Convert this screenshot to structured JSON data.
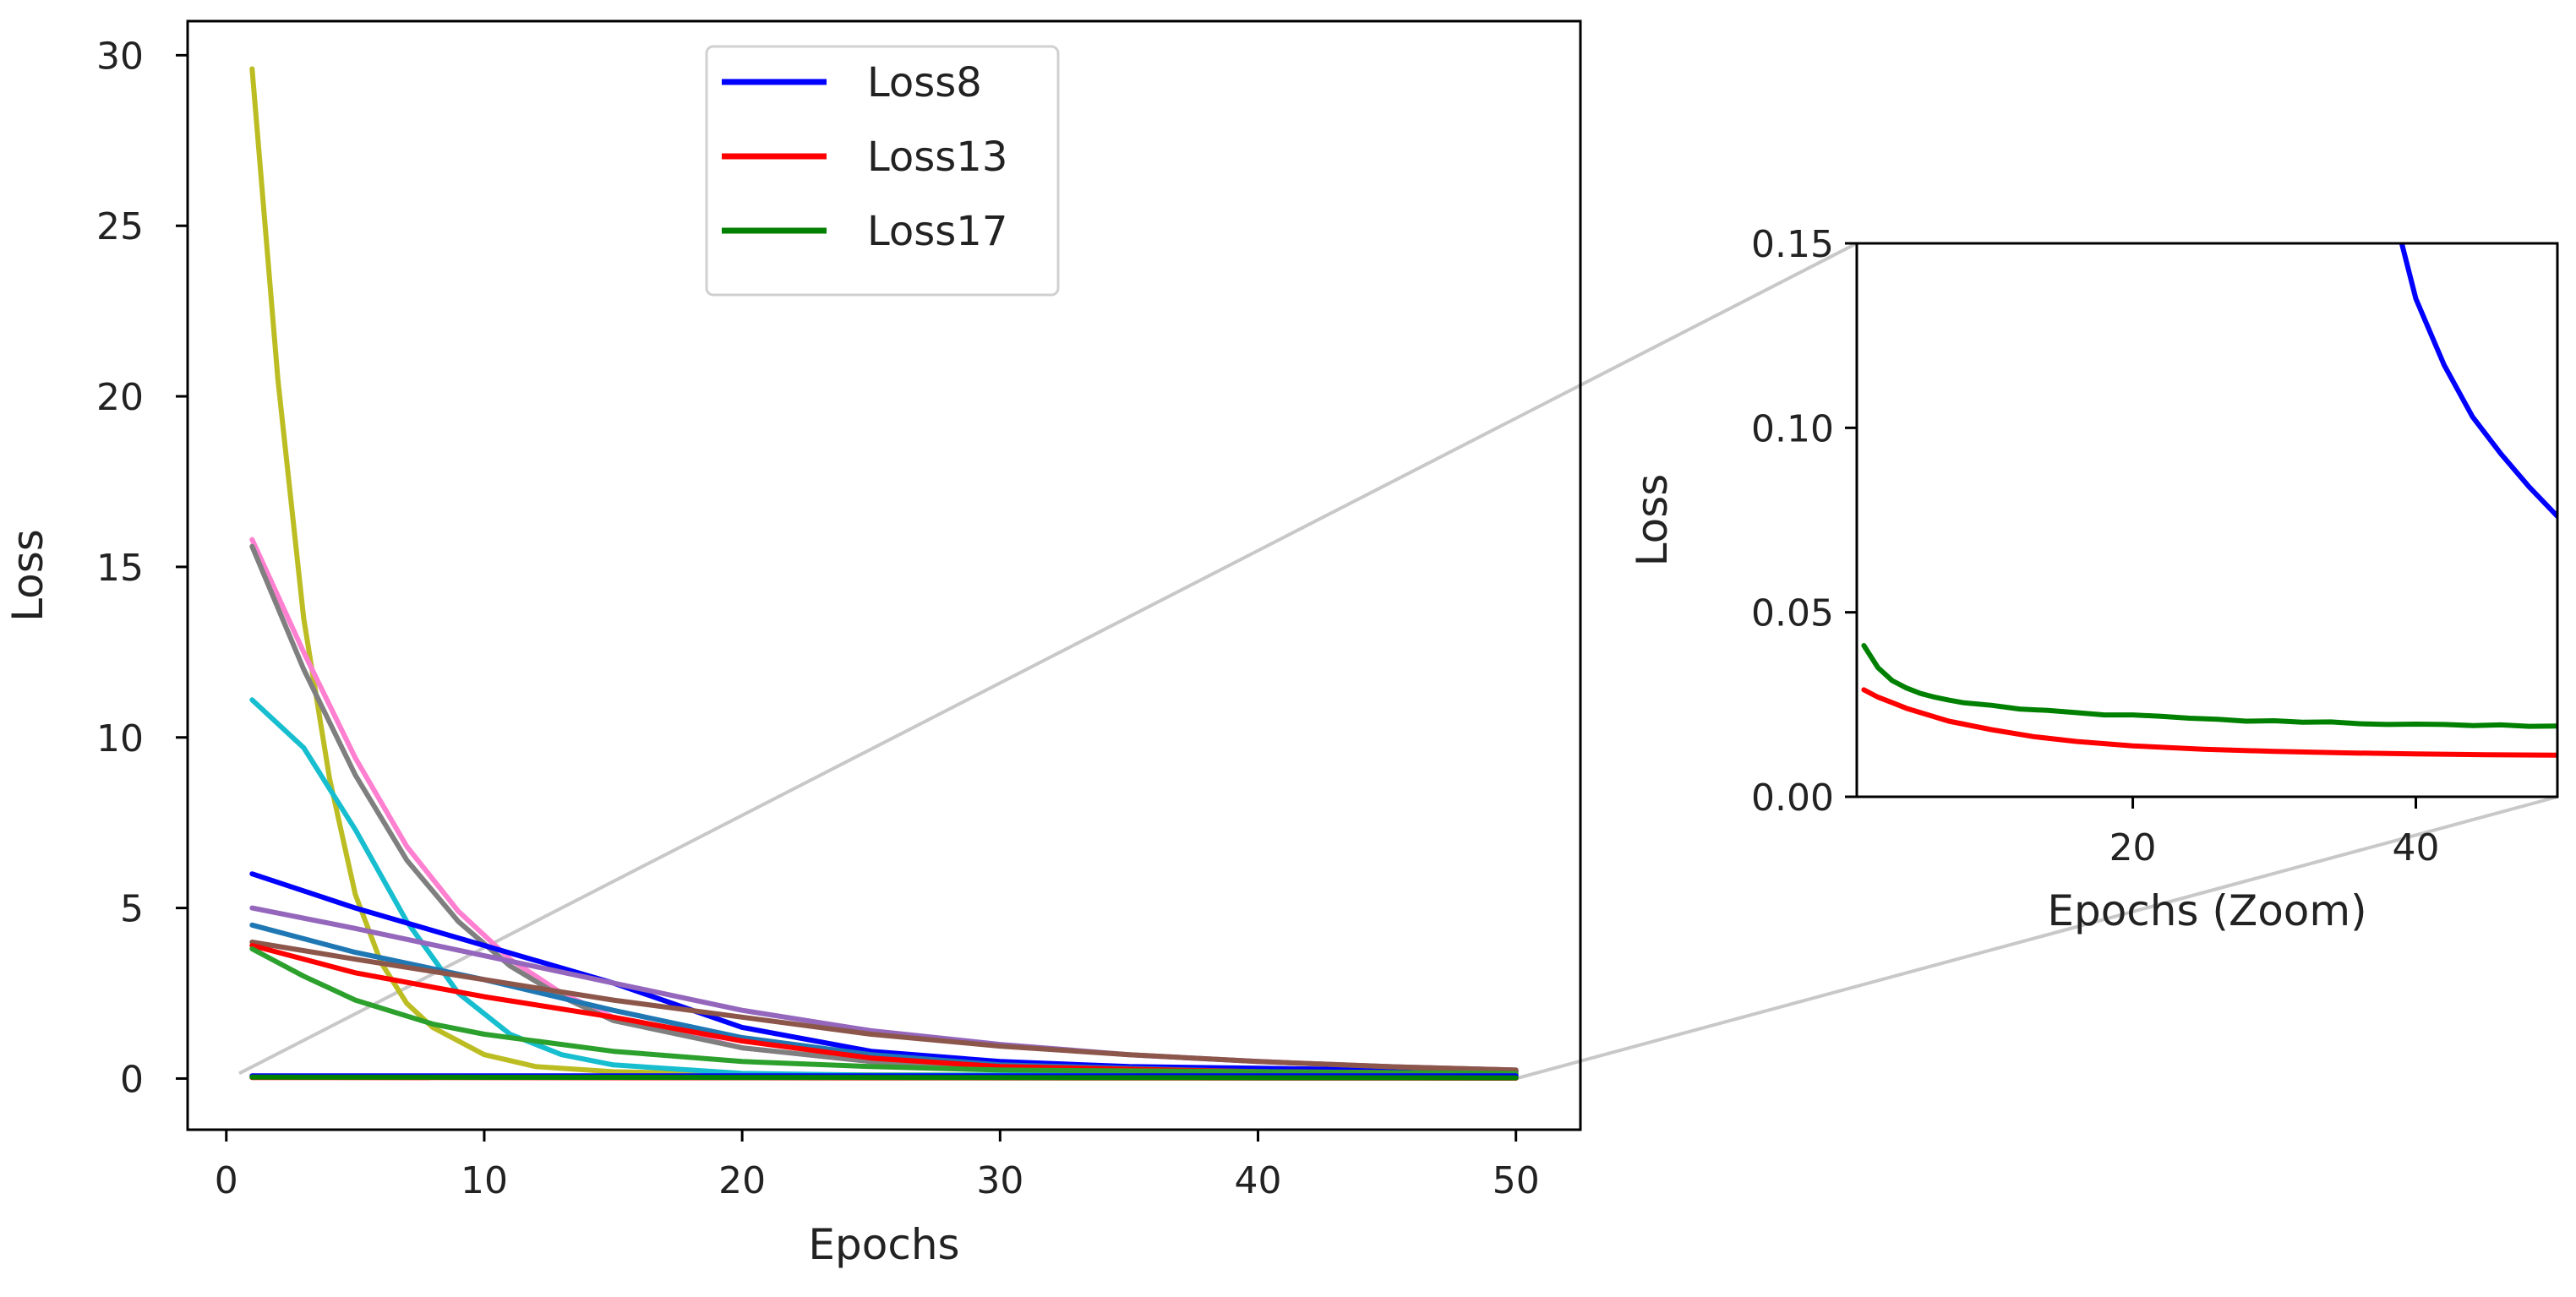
{
  "chart_data": [
    {
      "id": "main",
      "type": "line",
      "title": "",
      "xlabel": "Epochs",
      "ylabel": "Loss",
      "xlim": [
        -1.5,
        52.5
      ],
      "ylim": [
        -1.5,
        31
      ],
      "xticks": [
        0,
        10,
        20,
        30,
        40,
        50
      ],
      "yticks": [
        0,
        5,
        10,
        15,
        20,
        25,
        30
      ],
      "xtick_labels": [
        "0",
        "10",
        "20",
        "30",
        "40",
        "50"
      ],
      "ytick_labels": [
        "0",
        "5",
        "10",
        "15",
        "20",
        "25",
        "30"
      ],
      "grid": false,
      "legend": {
        "position": "top-center",
        "entries": [
          {
            "label": "Loss8",
            "color": "#0000ff"
          },
          {
            "label": "Loss13",
            "color": "#ff0000"
          },
          {
            "label": "Loss17",
            "color": "#008000"
          }
        ]
      },
      "series": [
        {
          "name": "yellow curve",
          "color": "#bcbd22",
          "x": [
            1,
            2,
            3,
            4,
            5,
            6,
            7,
            8,
            10,
            12,
            15,
            20,
            30,
            50
          ],
          "values": [
            29.6,
            20.5,
            13.5,
            8.8,
            5.4,
            3.4,
            2.2,
            1.5,
            0.7,
            0.35,
            0.2,
            0.12,
            0.1,
            0.1
          ]
        },
        {
          "name": "pink curve",
          "color": "#ff7fd0",
          "x": [
            1,
            3,
            5,
            7,
            9,
            11,
            13,
            15,
            20,
            25,
            30,
            40,
            50
          ],
          "values": [
            15.8,
            12.5,
            9.4,
            6.8,
            4.9,
            3.5,
            2.5,
            1.8,
            0.9,
            0.5,
            0.3,
            0.15,
            0.1
          ]
        },
        {
          "name": "gray curve",
          "color": "#7f7f7f",
          "x": [
            1,
            3,
            5,
            7,
            9,
            11,
            13,
            15,
            20,
            25,
            30,
            40,
            50
          ],
          "values": [
            15.6,
            12.0,
            8.9,
            6.4,
            4.6,
            3.3,
            2.4,
            1.7,
            0.9,
            0.5,
            0.3,
            0.15,
            0.1
          ]
        },
        {
          "name": "cyan curve",
          "color": "#17becf",
          "x": [
            1,
            3,
            5,
            7,
            9,
            11,
            13,
            15,
            20,
            25,
            30,
            50
          ],
          "values": [
            11.1,
            9.7,
            7.3,
            4.6,
            2.5,
            1.3,
            0.7,
            0.4,
            0.15,
            0.1,
            0.1,
            0.1
          ]
        },
        {
          "name": "blue curve",
          "color": "#0000ff",
          "x": [
            1,
            5,
            10,
            15,
            20,
            25,
            30,
            35,
            40,
            45,
            50
          ],
          "values": [
            6.0,
            5.0,
            3.9,
            2.8,
            1.5,
            0.8,
            0.5,
            0.35,
            0.3,
            0.25,
            0.2
          ]
        },
        {
          "name": "purple curve",
          "color": "#9467bd",
          "x": [
            1,
            5,
            10,
            15,
            20,
            25,
            30,
            35,
            40,
            45,
            50
          ],
          "values": [
            5.0,
            4.4,
            3.6,
            2.8,
            2.0,
            1.4,
            1.0,
            0.7,
            0.5,
            0.35,
            0.25
          ]
        },
        {
          "name": "steel blue curve",
          "color": "#1f77b4",
          "x": [
            1,
            5,
            10,
            15,
            20,
            25,
            30,
            40,
            50
          ],
          "values": [
            4.5,
            3.7,
            2.9,
            2.0,
            1.2,
            0.7,
            0.4,
            0.2,
            0.15
          ]
        },
        {
          "name": "brown curve",
          "color": "#8c564b",
          "x": [
            1,
            5,
            10,
            15,
            20,
            25,
            30,
            35,
            40,
            45,
            50
          ],
          "values": [
            4.0,
            3.5,
            2.9,
            2.3,
            1.8,
            1.3,
            0.95,
            0.7,
            0.5,
            0.35,
            0.25
          ]
        },
        {
          "name": "red curve",
          "color": "#ff0000",
          "x": [
            1,
            5,
            10,
            15,
            20,
            25,
            30,
            40,
            50
          ],
          "values": [
            3.9,
            3.1,
            2.4,
            1.8,
            1.1,
            0.6,
            0.35,
            0.2,
            0.15
          ]
        },
        {
          "name": "green curve",
          "color": "#2ca02c",
          "x": [
            1,
            3,
            5,
            8,
            10,
            15,
            20,
            25,
            30,
            40,
            50
          ],
          "values": [
            3.8,
            3.0,
            2.3,
            1.6,
            1.3,
            0.8,
            0.5,
            0.35,
            0.25,
            0.2,
            0.15
          ]
        },
        {
          "name": "Loss8",
          "color": "#0000ff",
          "x": [
            1,
            50
          ],
          "values": [
            0.08,
            0.08
          ]
        },
        {
          "name": "Loss13",
          "color": "#ff0000",
          "x": [
            1,
            50
          ],
          "values": [
            0.03,
            0.01
          ]
        },
        {
          "name": "Loss17",
          "color": "#008000",
          "x": [
            1,
            50
          ],
          "values": [
            0.04,
            0.02
          ]
        }
      ]
    },
    {
      "id": "zoom",
      "type": "line",
      "title": "",
      "xlabel": "Epochs (Zoom)",
      "ylabel": "Loss",
      "xlim": [
        0.5,
        50
      ],
      "ylim": [
        0,
        0.15
      ],
      "xticks": [
        20,
        40
      ],
      "yticks": [
        0,
        0.05,
        0.1,
        0.15
      ],
      "xtick_labels": [
        "20",
        "40"
      ],
      "ytick_labels": [
        "0.00",
        "0.05",
        "0.10",
        "0.15"
      ],
      "grid": false,
      "series": [
        {
          "name": "Loss8",
          "color": "#0000ff",
          "x": [
            39.0,
            40,
            42,
            44,
            46,
            48,
            50
          ],
          "values": [
            0.15,
            0.135,
            0.117,
            0.103,
            0.093,
            0.084,
            0.076
          ]
        },
        {
          "name": "Loss13",
          "color": "#ff0000",
          "x": [
            1,
            2,
            3,
            4,
            5,
            7,
            10,
            13,
            16,
            20,
            25,
            30,
            35,
            40,
            45,
            50
          ],
          "values": [
            0.029,
            0.027,
            0.0255,
            0.024,
            0.0228,
            0.0205,
            0.0182,
            0.0163,
            0.015,
            0.0138,
            0.0129,
            0.0123,
            0.0119,
            0.0116,
            0.0114,
            0.0113
          ]
        },
        {
          "name": "Loss17",
          "color": "#008000",
          "x": [
            1,
            2,
            3,
            4,
            5,
            6,
            7,
            8,
            10,
            12,
            14,
            16,
            18,
            20,
            22,
            24,
            26,
            28,
            30,
            32,
            34,
            36,
            38,
            40,
            42,
            44,
            46,
            48,
            50
          ],
          "values": [
            0.041,
            0.035,
            0.0315,
            0.0295,
            0.028,
            0.027,
            0.0262,
            0.0255,
            0.0248,
            0.0238,
            0.0234,
            0.0228,
            0.0222,
            0.0222,
            0.0218,
            0.0213,
            0.021,
            0.0205,
            0.0206,
            0.0202,
            0.0203,
            0.0198,
            0.0196,
            0.0197,
            0.0196,
            0.0193,
            0.0195,
            0.0191,
            0.0192
          ]
        }
      ]
    }
  ]
}
